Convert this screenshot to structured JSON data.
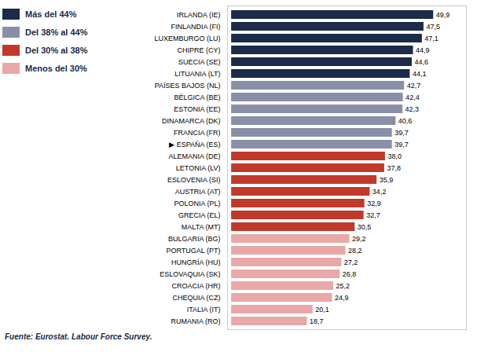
{
  "chart_data": {
    "type": "bar",
    "orientation": "horizontal",
    "categories": [
      "IRLANDA (IE)",
      "FINLANDIA (FI)",
      "LUXEMBURGO (LU)",
      "CHIPRE (CY)",
      "SUECIA (SE)",
      "LITUANIA (LT)",
      "PAÍSES BAJOS (NL)",
      "BÉLGICA (BE)",
      "ESTONIA (EE)",
      "DINAMARCA (DK)",
      "FRANCIA (FR)",
      "▶ ESPAÑA (ES)",
      "ALEMANIA (DE)",
      "LETONIA (LV)",
      "ESLOVENIA (SI)",
      "AUSTRIA (AT)",
      "POLONIA (PL)",
      "GRECIA (EL)",
      "MALTA (MT)",
      "BULGARIA (BG)",
      "PORTUGAL (PT)",
      "HUNGRÍA (HU)",
      "ESLOVAQUIA (SK)",
      "CROACIA (HR)",
      "CHEQUIA (CZ)",
      "ITALIA (IT)",
      "RUMANIA (RO)"
    ],
    "series": [
      {
        "name": "Más del 44%",
        "color": "#1c2b4a",
        "values": [
          49.9,
          47.5,
          47.1,
          44.9,
          44.6,
          44.1,
          null,
          null,
          null,
          null,
          null,
          null,
          null,
          null,
          null,
          null,
          null,
          null,
          null,
          null,
          null,
          null,
          null,
          null,
          null,
          null,
          null
        ],
        "value_labels": [
          "49,9",
          "47,5",
          "47,1",
          "44,9",
          "44,6",
          "44,1",
          null,
          null,
          null,
          null,
          null,
          null,
          null,
          null,
          null,
          null,
          null,
          null,
          null,
          null,
          null,
          null,
          null,
          null,
          null,
          null,
          null
        ]
      },
      {
        "name": "Del 38% al 44%",
        "color": "#8a8fa8",
        "values": [
          null,
          null,
          null,
          null,
          null,
          null,
          42.7,
          42.4,
          42.3,
          40.6,
          39.7,
          39.7,
          null,
          null,
          null,
          null,
          null,
          null,
          null,
          null,
          null,
          null,
          null,
          null,
          null,
          null,
          null
        ],
        "value_labels": [
          null,
          null,
          null,
          null,
          null,
          null,
          "42,7",
          "42,4",
          "42,3",
          "40,6",
          "39,7",
          "39,7",
          null,
          null,
          null,
          null,
          null,
          null,
          null,
          null,
          null,
          null,
          null,
          null,
          null,
          null,
          null
        ]
      },
      {
        "name": "Del 30% al 38%",
        "color": "#c0392b",
        "values": [
          null,
          null,
          null,
          null,
          null,
          null,
          null,
          null,
          null,
          null,
          null,
          null,
          38.0,
          37.8,
          35.9,
          34.2,
          32.9,
          32.7,
          30.5,
          null,
          null,
          null,
          null,
          null,
          null,
          null,
          null
        ],
        "value_labels": [
          null,
          null,
          null,
          null,
          null,
          null,
          null,
          null,
          null,
          null,
          null,
          null,
          "38,0",
          "37,8",
          "35,9",
          "34,2",
          "32,9",
          "32,7",
          "30,5",
          null,
          null,
          null,
          null,
          null,
          null,
          null,
          null
        ]
      },
      {
        "name": "Menos del 30%",
        "color": "#e8a8a8",
        "values": [
          null,
          null,
          null,
          null,
          null,
          null,
          null,
          null,
          null,
          null,
          null,
          null,
          null,
          null,
          null,
          null,
          null,
          null,
          null,
          29.2,
          28.2,
          27.2,
          26.8,
          25.2,
          24.9,
          20.1,
          18.7
        ],
        "value_labels": [
          null,
          null,
          null,
          null,
          null,
          null,
          null,
          null,
          null,
          null,
          null,
          null,
          null,
          null,
          null,
          null,
          null,
          null,
          null,
          "29,2",
          "28,2",
          "27,2",
          "26,8",
          "25,2",
          "24,9",
          "20,1",
          "18,7"
        ]
      }
    ],
    "xlim": [
      -1,
      58
    ],
    "data_labels": true,
    "tick_labels": "y",
    "legend": "left",
    "caption": "Fuente: Eurostat. Labour Force Survey."
  }
}
